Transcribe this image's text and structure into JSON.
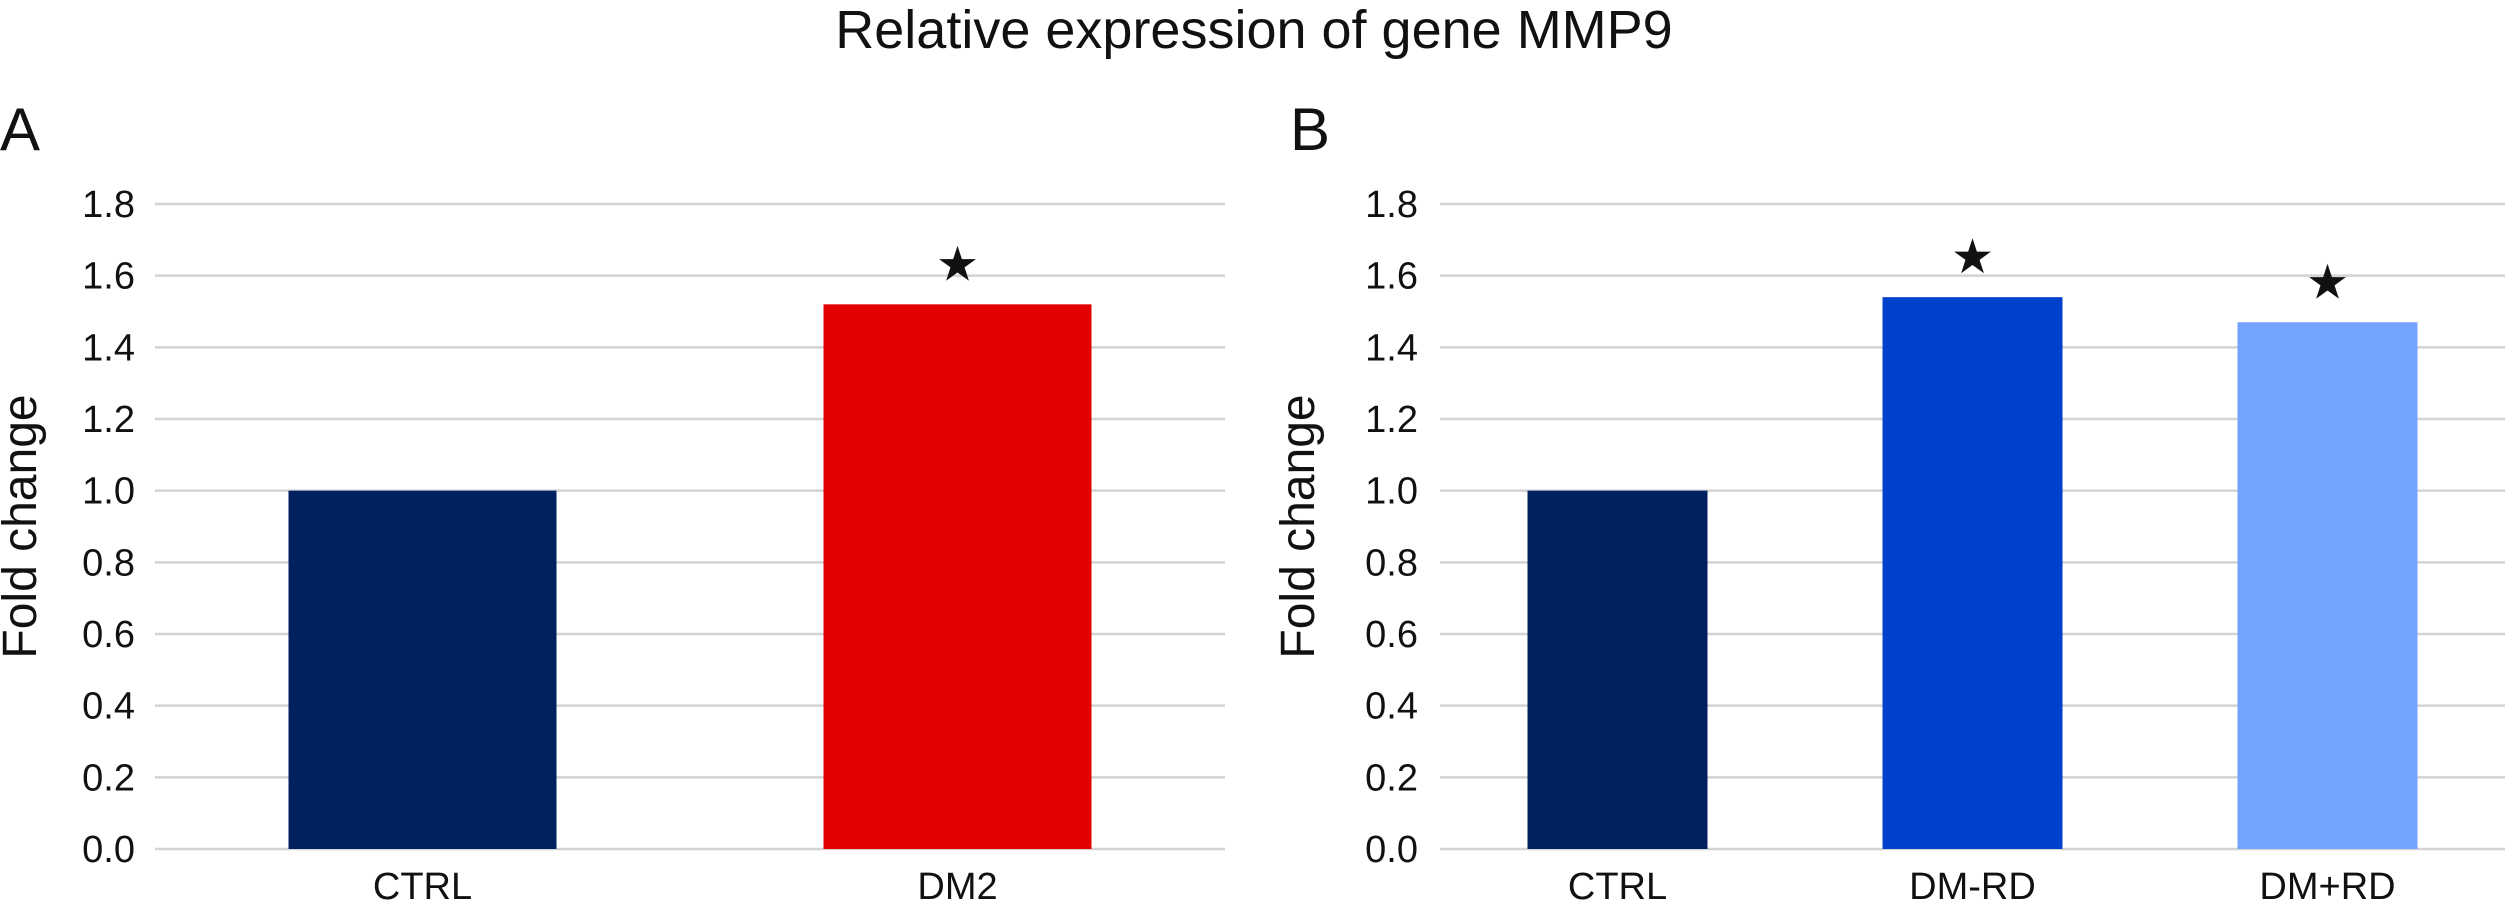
{
  "figure": {
    "title": "Relative expression of gene MMP9"
  },
  "chart_data": [
    {
      "type": "bar",
      "panel": "A",
      "ylabel": "Fold change",
      "ylim": [
        0,
        1.8
      ],
      "yticks": [
        "0.0",
        "0.2",
        "0.4",
        "0.6",
        "0.8",
        "1.0",
        "1.2",
        "1.4",
        "1.6",
        "1.8"
      ],
      "grid": true,
      "categories": [
        "CTRL",
        "DM2"
      ],
      "values": [
        1.0,
        1.52
      ],
      "colors": [
        "#002060",
        "#e30000"
      ],
      "significance": [
        "",
        "★"
      ]
    },
    {
      "type": "bar",
      "panel": "B",
      "ylabel": "Fold change",
      "ylim": [
        0,
        1.8
      ],
      "yticks": [
        "0.0",
        "0.2",
        "0.4",
        "0.6",
        "0.8",
        "1.0",
        "1.2",
        "1.4",
        "1.6",
        "1.8"
      ],
      "grid": true,
      "categories": [
        "CTRL",
        "DM-RD",
        "DM+RD"
      ],
      "values": [
        1.0,
        1.54,
        1.47
      ],
      "colors": [
        "#002060",
        "#0041cc",
        "#73a2ff"
      ],
      "significance": [
        "",
        "★",
        "★"
      ]
    }
  ]
}
